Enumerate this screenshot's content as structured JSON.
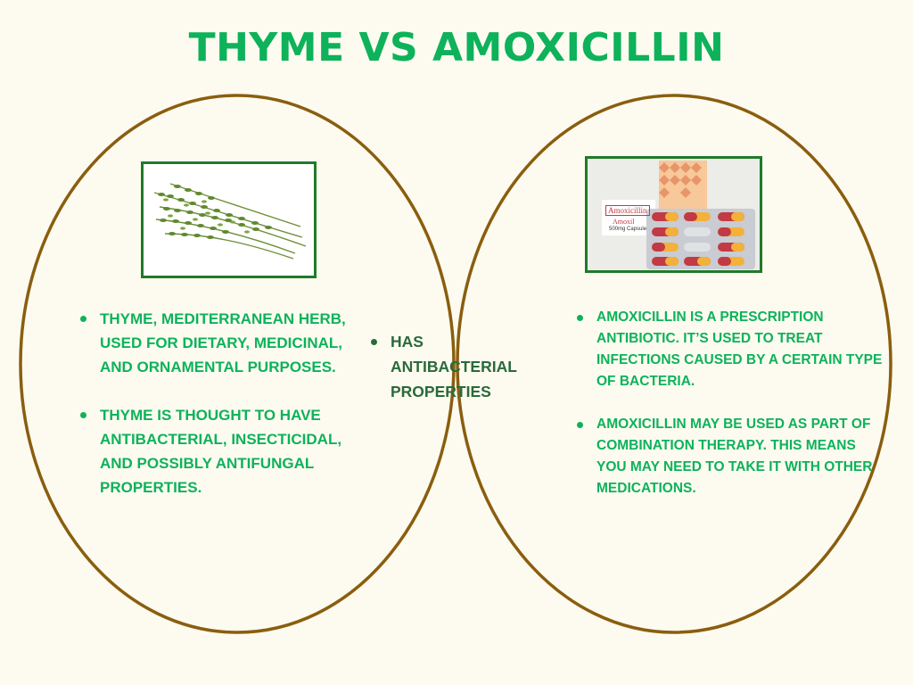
{
  "title": "THYME VS AMOXICILLIN",
  "colors": {
    "title": "#0db25a",
    "circle_stroke": "#8a5e0f",
    "left_text": "#0db25a",
    "right_text": "#0db25a",
    "middle_text": "#2a6a3a",
    "image_border": "#1f7a2a",
    "background": "#fdfbf0"
  },
  "left": {
    "image": "thyme-sprigs-photo",
    "bullets": [
      "THYME, MEDITERRANEAN HERB, USED FOR DIETARY, MEDICINAL, AND ORNAMENTAL PURPOSES.",
      "THYME IS THOUGHT TO HAVE ANTIBACTERIAL, INSECTICIDAL, AND POSSIBLY ANTIFUNGAL PROPERTIES."
    ]
  },
  "middle": {
    "bullets": [
      "HAS ANTIBACTERIAL PROPERTIES"
    ]
  },
  "right": {
    "image": "amoxicillin-capsules-photo",
    "box_label": "Amoxicillin",
    "box_brand": "Amoxil",
    "box_dose": "500mg Capsule",
    "bullets": [
      "AMOXICILLIN IS A PRESCRIPTION ANTIBIOTIC. IT’S USED TO TREAT INFECTIONS CAUSED BY A CERTAIN TYPE OF BACTERIA.",
      "AMOXICILLIN MAY BE USED AS PART OF COMBINATION THERAPY. THIS MEANS YOU MAY NEED TO TAKE IT WITH OTHER MEDICATIONS."
    ]
  }
}
